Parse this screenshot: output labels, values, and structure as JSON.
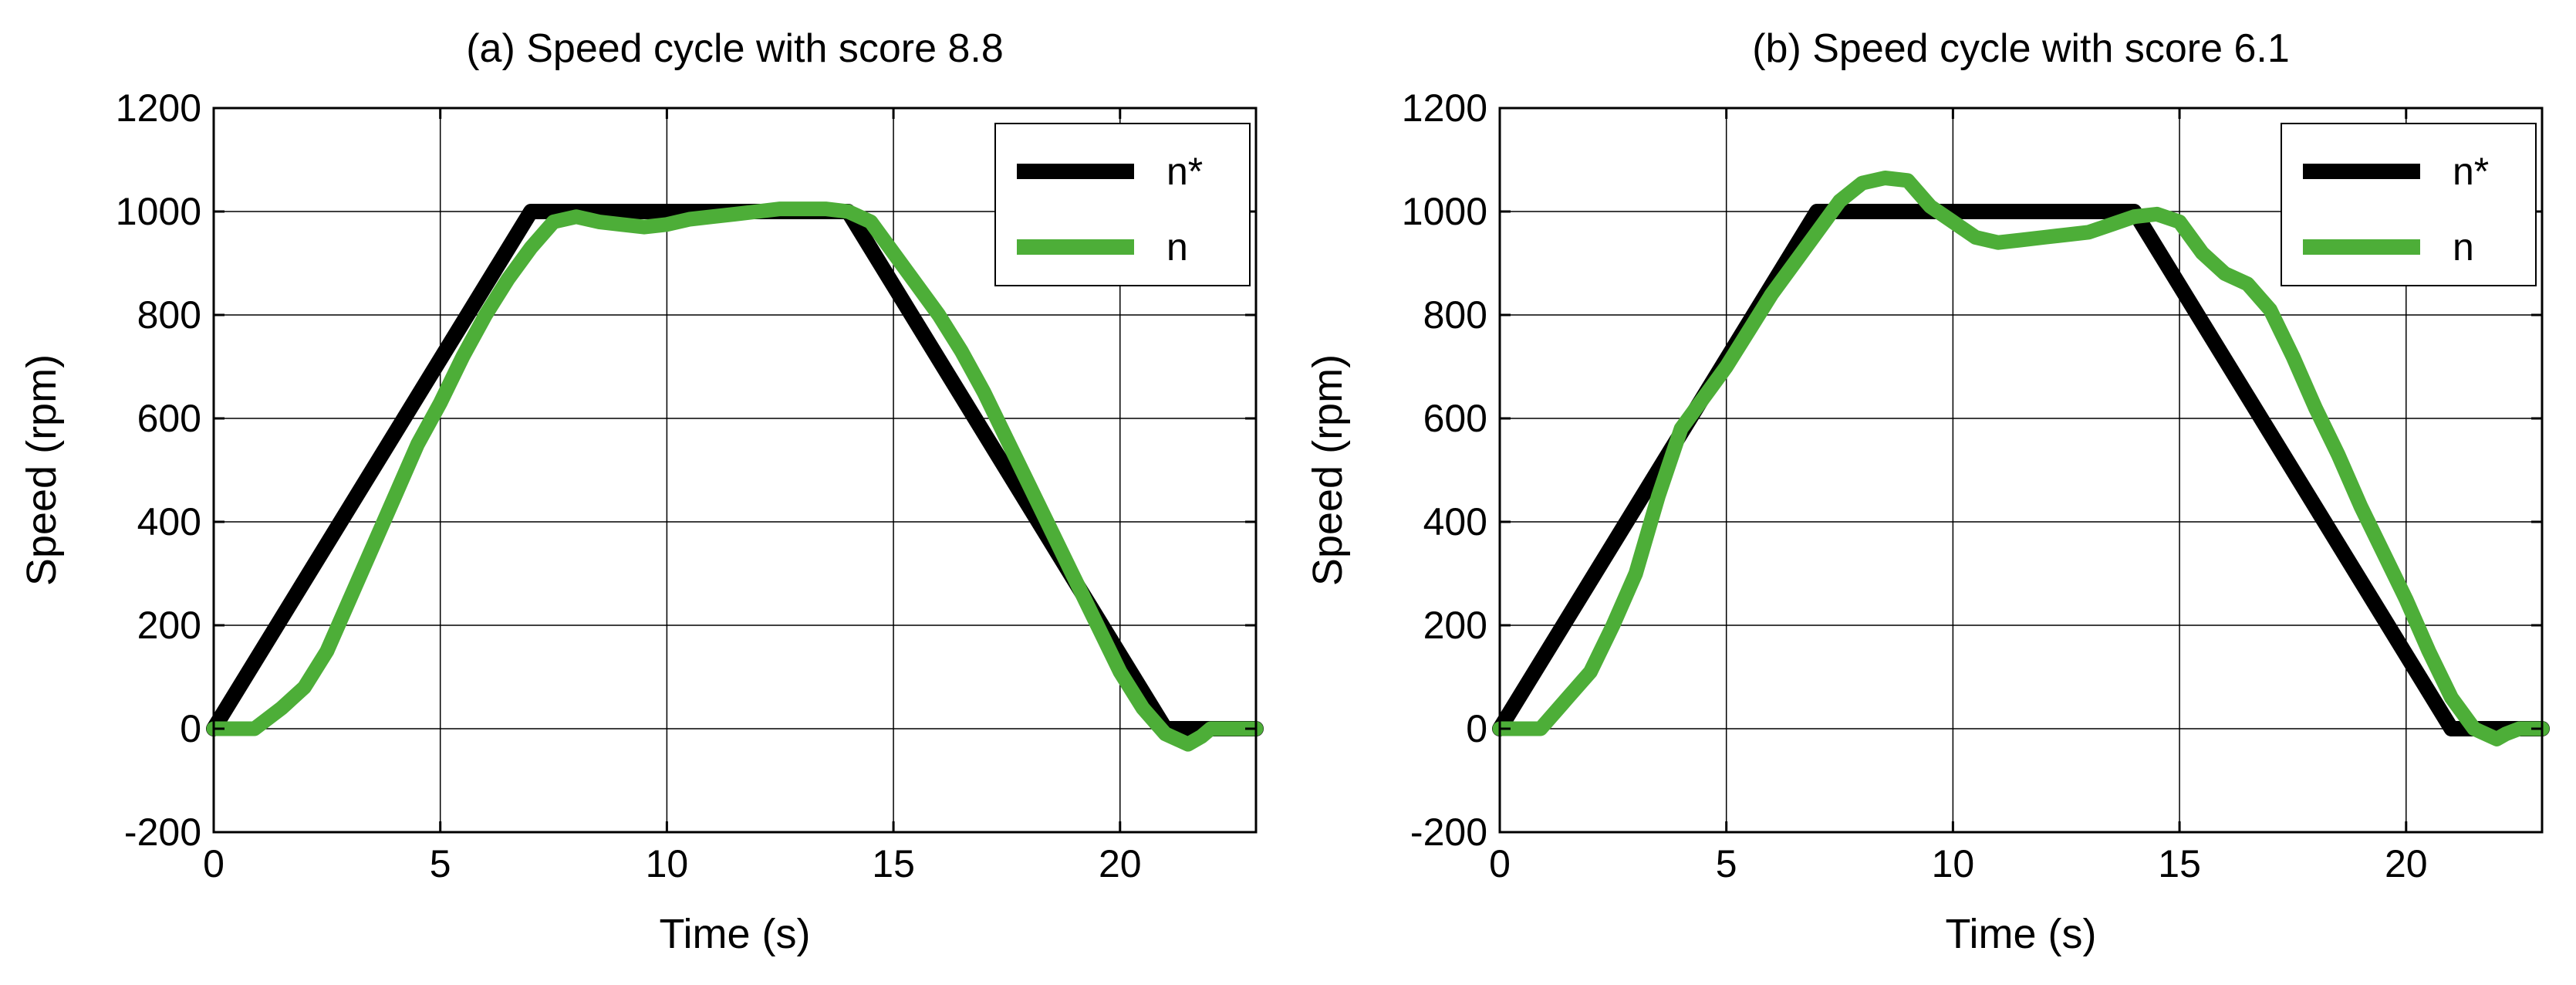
{
  "chart_data": [
    {
      "type": "line",
      "title": "(a) Speed cycle with score 8.8",
      "xlabel": "Time (s)",
      "ylabel": "Speed (rpm)",
      "xlim": [
        0,
        23
      ],
      "ylim": [
        -200,
        1200
      ],
      "xticks": [
        0,
        5,
        10,
        15,
        20
      ],
      "yticks": [
        -200,
        0,
        200,
        400,
        600,
        800,
        1000,
        1200
      ],
      "xtick_labels": [
        "0",
        "5",
        "10",
        "15",
        "20"
      ],
      "ytick_labels": [
        "-200",
        "0",
        "200",
        "400",
        "600",
        "800",
        "1000",
        "1200"
      ],
      "grid": true,
      "legend": "top-right",
      "series": [
        {
          "name": "n*",
          "color": "#000000",
          "x": [
            0,
            7,
            14,
            21,
            23
          ],
          "y": [
            0,
            1000,
            1000,
            0,
            0
          ]
        },
        {
          "name": "n",
          "color": "#4dae38",
          "x": [
            0,
            0.9,
            1.5,
            2,
            2.5,
            3,
            3.5,
            4,
            4.5,
            5,
            5.5,
            6,
            6.5,
            7,
            7.5,
            8,
            8.5,
            9,
            9.5,
            10,
            10.5,
            11,
            11.5,
            12,
            12.5,
            13,
            13.5,
            14,
            14.5,
            15,
            15.5,
            16,
            16.5,
            17,
            17.5,
            18,
            18.5,
            19,
            19.5,
            20,
            20.5,
            21,
            21.5,
            21.8,
            22,
            22.3,
            23
          ],
          "y": [
            0,
            0,
            40,
            80,
            150,
            250,
            350,
            450,
            550,
            630,
            720,
            800,
            870,
            930,
            980,
            990,
            980,
            975,
            970,
            975,
            985,
            990,
            995,
            1000,
            1005,
            1005,
            1005,
            1000,
            980,
            920,
            860,
            800,
            730,
            650,
            560,
            470,
            380,
            290,
            200,
            110,
            40,
            -10,
            -30,
            -15,
            0,
            0,
            0
          ]
        }
      ]
    },
    {
      "type": "line",
      "title": "(b) Speed cycle with score 6.1",
      "xlabel": "Time (s)",
      "ylabel": "Speed (rpm)",
      "xlim": [
        0,
        23
      ],
      "ylim": [
        -200,
        1200
      ],
      "xticks": [
        0,
        5,
        10,
        15,
        20
      ],
      "yticks": [
        -200,
        0,
        200,
        400,
        600,
        800,
        1000,
        1200
      ],
      "xtick_labels": [
        "0",
        "5",
        "10",
        "15",
        "20"
      ],
      "ytick_labels": [
        "-200",
        "0",
        "200",
        "400",
        "600",
        "800",
        "1000",
        "1200"
      ],
      "grid": true,
      "legend": "top-right",
      "series": [
        {
          "name": "n*",
          "color": "#000000",
          "x": [
            0,
            7,
            14,
            21,
            23
          ],
          "y": [
            0,
            1000,
            1000,
            0,
            0
          ]
        },
        {
          "name": "n",
          "color": "#4dae38",
          "x": [
            0,
            0.9,
            1.5,
            2,
            2.5,
            3,
            3.5,
            4,
            4.5,
            5,
            5.5,
            6,
            6.5,
            7,
            7.5,
            8,
            8.5,
            9,
            9.5,
            10,
            10.5,
            11,
            11.5,
            12,
            12.5,
            13,
            13.5,
            14,
            14.5,
            15,
            15.5,
            16,
            16.5,
            17,
            17.5,
            18,
            18.5,
            19,
            19.5,
            20,
            20.5,
            21,
            21.5,
            22,
            22.2,
            22.5,
            23
          ],
          "y": [
            0,
            0,
            60,
            110,
            200,
            300,
            450,
            580,
            640,
            700,
            770,
            840,
            900,
            960,
            1020,
            1055,
            1065,
            1060,
            1010,
            980,
            950,
            940,
            945,
            950,
            955,
            960,
            975,
            990,
            995,
            980,
            920,
            880,
            860,
            810,
            720,
            620,
            530,
            430,
            340,
            250,
            150,
            60,
            0,
            -20,
            -10,
            0,
            0
          ]
        }
      ]
    }
  ]
}
